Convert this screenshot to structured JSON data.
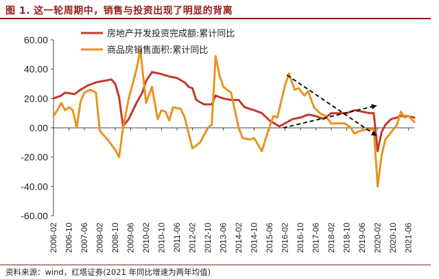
{
  "title": "图 1. 这一轮周期中，销售与投资出现了明显的背离",
  "source": "资料来源：wind，红塔证券(2021 年同比增速为两年均值)",
  "chart_data": {
    "type": "line",
    "title": "图 1. 这一轮周期中，销售与投资出现了明显的背离",
    "xlabel": "",
    "ylabel": "",
    "ylim": [
      -60,
      60
    ],
    "yticks": [
      60,
      40,
      20,
      0,
      -20,
      -40,
      -60
    ],
    "ytick_labels": [
      "60.00",
      "40.00",
      "20.00",
      "0.00",
      "-20.00",
      "-40.00",
      "-60.00"
    ],
    "x_start": "2006-02",
    "x_end": "2021-09",
    "xtick_labels": [
      "2006-02",
      "2006-10",
      "2007-06",
      "2008-02",
      "2008-10",
      "2009-06",
      "2010-02",
      "2010-10",
      "2011-06",
      "2012-02",
      "2012-10",
      "2013-06",
      "2014-02",
      "2014-10",
      "2015-06",
      "2016-02",
      "2016-10",
      "2017-06",
      "2018-02",
      "2018-10",
      "2019-06",
      "2020-02",
      "2020-10",
      "2021-06"
    ],
    "grid": false,
    "legend_position": "top-left",
    "series": [
      {
        "name": "房地产开发投资完成额:累计同比",
        "color": "#c0392b",
        "points": [
          [
            "2006-02",
            20
          ],
          [
            "2006-06",
            22
          ],
          [
            "2006-08",
            24
          ],
          [
            "2007-01",
            23
          ],
          [
            "2007-04",
            26
          ],
          [
            "2007-08",
            29
          ],
          [
            "2007-12",
            31
          ],
          [
            "2008-04",
            32
          ],
          [
            "2008-08",
            33
          ],
          [
            "2008-10",
            30
          ],
          [
            "2008-12",
            21
          ],
          [
            "2009-02",
            1
          ],
          [
            "2009-05",
            6
          ],
          [
            "2009-09",
            17
          ],
          [
            "2009-12",
            24
          ],
          [
            "2010-02",
            32
          ],
          [
            "2010-05",
            38
          ],
          [
            "2010-09",
            37
          ],
          [
            "2011-02",
            35
          ],
          [
            "2011-06",
            34
          ],
          [
            "2011-10",
            31
          ],
          [
            "2011-12",
            28
          ],
          [
            "2012-02",
            27
          ],
          [
            "2012-04",
            19
          ],
          [
            "2012-08",
            16
          ],
          [
            "2012-12",
            16
          ],
          [
            "2013-02",
            22
          ],
          [
            "2013-06",
            20
          ],
          [
            "2013-10",
            19
          ],
          [
            "2014-02",
            19
          ],
          [
            "2014-05",
            14
          ],
          [
            "2014-10",
            12
          ],
          [
            "2015-02",
            10
          ],
          [
            "2015-06",
            5
          ],
          [
            "2015-11",
            1
          ],
          [
            "2016-02",
            3
          ],
          [
            "2016-06",
            6
          ],
          [
            "2016-10",
            7
          ],
          [
            "2017-02",
            9
          ],
          [
            "2017-06",
            8
          ],
          [
            "2017-10",
            6
          ],
          [
            "2018-02",
            10
          ],
          [
            "2018-06",
            10
          ],
          [
            "2018-10",
            10
          ],
          [
            "2019-02",
            12
          ],
          [
            "2019-06",
            11
          ],
          [
            "2019-10",
            10
          ],
          [
            "2019-12",
            10
          ],
          [
            "2020-02",
            -16
          ],
          [
            "2020-04",
            -3
          ],
          [
            "2020-06",
            2
          ],
          [
            "2020-09",
            6
          ],
          [
            "2020-12",
            7
          ],
          [
            "2021-02",
            8
          ],
          [
            "2021-05",
            8
          ],
          [
            "2021-09",
            7
          ]
        ]
      },
      {
        "name": "商品房销售面积:累计同比",
        "color": "#e8921e",
        "points": [
          [
            "2006-02",
            8
          ],
          [
            "2006-04",
            12
          ],
          [
            "2006-06",
            17
          ],
          [
            "2006-08",
            12
          ],
          [
            "2006-10",
            14
          ],
          [
            "2006-12",
            12
          ],
          [
            "2007-02",
            0
          ],
          [
            "2007-04",
            18
          ],
          [
            "2007-06",
            24
          ],
          [
            "2007-09",
            26
          ],
          [
            "2007-12",
            24
          ],
          [
            "2008-02",
            -2
          ],
          [
            "2008-06",
            -8
          ],
          [
            "2008-10",
            -15
          ],
          [
            "2008-12",
            -20
          ],
          [
            "2009-02",
            0
          ],
          [
            "2009-05",
            20
          ],
          [
            "2009-09",
            40
          ],
          [
            "2009-11",
            53
          ],
          [
            "2010-02",
            17
          ],
          [
            "2010-05",
            28
          ],
          [
            "2010-08",
            6
          ],
          [
            "2010-10",
            12
          ],
          [
            "2010-12",
            11
          ],
          [
            "2011-02",
            5
          ],
          [
            "2011-04",
            14
          ],
          [
            "2011-08",
            13
          ],
          [
            "2011-10",
            7
          ],
          [
            "2012-02",
            -14
          ],
          [
            "2012-06",
            -10
          ],
          [
            "2012-10",
            0
          ],
          [
            "2012-12",
            2
          ],
          [
            "2013-02",
            49
          ],
          [
            "2013-04",
            36
          ],
          [
            "2013-06",
            28
          ],
          [
            "2013-10",
            24
          ],
          [
            "2014-02",
            0
          ],
          [
            "2014-04",
            -7
          ],
          [
            "2014-08",
            -8
          ],
          [
            "2014-10",
            -7
          ],
          [
            "2015-02",
            -16
          ],
          [
            "2015-05",
            -3
          ],
          [
            "2015-08",
            8
          ],
          [
            "2015-10",
            7
          ],
          [
            "2016-02",
            29
          ],
          [
            "2016-04",
            37
          ],
          [
            "2016-07",
            26
          ],
          [
            "2016-09",
            27
          ],
          [
            "2016-12",
            22
          ],
          [
            "2017-02",
            25
          ],
          [
            "2017-05",
            14
          ],
          [
            "2017-08",
            10
          ],
          [
            "2017-11",
            8
          ],
          [
            "2018-02",
            3
          ],
          [
            "2018-05",
            3
          ],
          [
            "2018-09",
            3
          ],
          [
            "2018-12",
            0
          ],
          [
            "2019-02",
            -4
          ],
          [
            "2019-05",
            -2
          ],
          [
            "2019-09",
            -1
          ],
          [
            "2019-12",
            -1
          ],
          [
            "2020-02",
            -40
          ],
          [
            "2020-04",
            -19
          ],
          [
            "2020-06",
            -8
          ],
          [
            "2020-09",
            -3
          ],
          [
            "2020-12",
            2
          ],
          [
            "2021-02",
            11
          ],
          [
            "2021-04",
            7
          ],
          [
            "2021-06",
            8
          ],
          [
            "2021-09",
            4
          ]
        ]
      }
    ],
    "annotations": [
      {
        "type": "arrow",
        "style": "dashed",
        "color": "#111111",
        "from": [
          "2016-03",
          36
        ],
        "to": [
          "2020-01",
          -5
        ]
      },
      {
        "type": "arrow",
        "style": "dashed",
        "color": "#111111",
        "from": [
          "2016-01",
          0
        ],
        "to": [
          "2020-01",
          15
        ]
      }
    ]
  }
}
